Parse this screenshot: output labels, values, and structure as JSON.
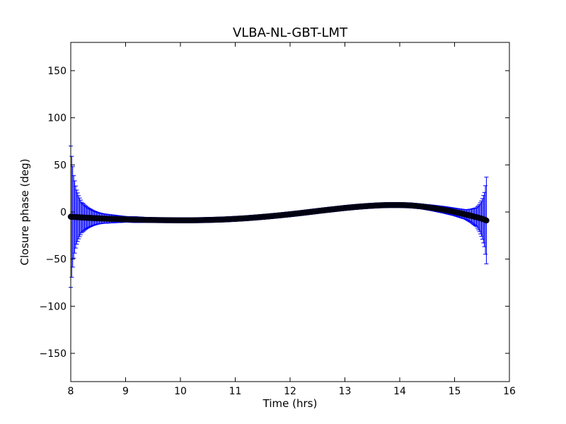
{
  "chart_data": {
    "type": "scatter",
    "title": "VLBA-NL-GBT-LMT",
    "xlabel": "Time (hrs)",
    "ylabel": "Closure phase (deg)",
    "xlim": [
      8,
      16
    ],
    "ylim": [
      -180,
      180
    ],
    "xticks": [
      8,
      9,
      10,
      11,
      12,
      13,
      14,
      15,
      16
    ],
    "yticks": [
      -150,
      -100,
      -50,
      0,
      50,
      100,
      150
    ],
    "grid": false,
    "legend": "none",
    "marker_color": "#000000",
    "errorbar_color": "#0000ff",
    "series": [
      {
        "x": [
          8.0,
          8.05,
          8.1,
          8.15,
          8.2,
          8.3,
          8.4,
          8.5,
          8.6,
          8.8,
          9.0,
          9.2,
          9.4,
          9.6,
          9.8,
          10.0,
          10.2,
          10.4,
          10.6,
          10.8,
          11.0,
          11.2,
          11.4,
          11.6,
          11.8,
          12.0,
          12.2,
          12.4,
          12.6,
          12.8,
          13.0,
          13.2,
          13.4,
          13.6,
          13.8,
          14.0,
          14.2,
          14.4,
          14.6,
          14.8,
          15.0,
          15.2,
          15.3,
          15.4,
          15.45,
          15.5,
          15.55,
          15.58
        ],
        "y": [
          -5,
          -5.2,
          -5.4,
          -5.6,
          -5.8,
          -6.1,
          -6.4,
          -6.7,
          -7.0,
          -7.4,
          -7.8,
          -8.1,
          -8.4,
          -8.6,
          -8.7,
          -8.8,
          -8.8,
          -8.6,
          -8.3,
          -7.9,
          -7.3,
          -6.6,
          -5.7,
          -4.7,
          -3.6,
          -2.4,
          -1.1,
          0.3,
          1.7,
          3.0,
          4.3,
          5.4,
          6.3,
          7.0,
          7.4,
          7.4,
          7.0,
          5.9,
          4.3,
          2.4,
          0.1,
          -2.6,
          -4.0,
          -5.5,
          -6.3,
          -7.2,
          -8.1,
          -9.0
        ],
        "err": [
          75,
          45,
          30,
          22,
          16,
          11,
          8,
          6,
          5,
          4,
          3,
          3,
          2.5,
          2.5,
          2.5,
          2.5,
          2.5,
          2.5,
          2.5,
          2.5,
          2.5,
          2.5,
          2.5,
          2.5,
          2.5,
          2.5,
          2.5,
          2.5,
          2.5,
          2.5,
          2.5,
          2.5,
          2.5,
          2.5,
          2.5,
          2.5,
          2.5,
          2.5,
          3,
          3.5,
          4,
          5,
          7,
          10,
          14,
          20,
          30,
          46
        ]
      }
    ]
  }
}
